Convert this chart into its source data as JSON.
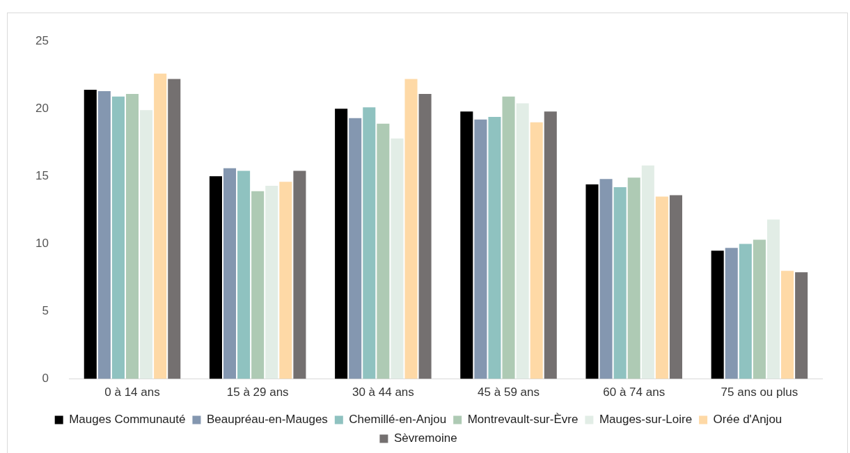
{
  "chart_data": {
    "type": "bar",
    "categories": [
      "0 à 14 ans",
      "15 à 29 ans",
      "30 à 44 ans",
      "45 à 59 ans",
      "60 à 74 ans",
      "75 ans ou plus"
    ],
    "series": [
      {
        "name": "Mauges Communauté",
        "color": "#000000",
        "values": [
          21.4,
          15.0,
          20.0,
          19.8,
          14.4,
          9.5
        ]
      },
      {
        "name": "Beaupréau-en-Mauges",
        "color": "#8497b0",
        "values": [
          21.3,
          15.6,
          19.3,
          19.2,
          14.8,
          9.7
        ]
      },
      {
        "name": "Chemillé-en-Anjou",
        "color": "#8fc2c0",
        "values": [
          20.9,
          15.4,
          20.1,
          19.4,
          14.2,
          10.0
        ]
      },
      {
        "name": "Montrevault-sur-Èvre",
        "color": "#aecab4",
        "values": [
          21.1,
          13.9,
          18.9,
          20.9,
          14.9,
          10.3
        ]
      },
      {
        "name": "Mauges-sur-Loire",
        "color": "#e2ede6",
        "values": [
          19.9,
          14.3,
          17.8,
          20.4,
          15.8,
          11.8
        ]
      },
      {
        "name": "Orée d'Anjou",
        "color": "#fed9a6",
        "values": [
          22.6,
          14.6,
          22.2,
          19.0,
          13.5,
          8.0
        ]
      },
      {
        "name": "Sèvremoine",
        "color": "#747070",
        "values": [
          22.2,
          15.4,
          21.1,
          19.8,
          13.6,
          7.9
        ]
      }
    ],
    "ylim": [
      0,
      25
    ],
    "yticks": [
      0,
      5,
      10,
      15,
      20,
      25
    ],
    "grid": false,
    "legend": "bottom"
  }
}
